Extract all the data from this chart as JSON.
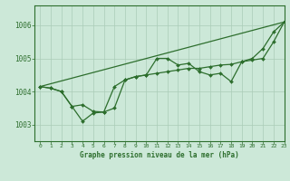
{
  "title": "Graphe pression niveau de la mer (hPa)",
  "background_color": "#cce8d8",
  "grid_color": "#aaccb8",
  "line_color": "#2d6e2d",
  "marker_color": "#2d6e2d",
  "xlim": [
    -0.5,
    23
  ],
  "ylim": [
    1002.5,
    1006.6
  ],
  "yticks": [
    1003,
    1004,
    1005,
    1006
  ],
  "xticks": [
    0,
    1,
    2,
    3,
    4,
    5,
    6,
    7,
    8,
    9,
    10,
    11,
    12,
    13,
    14,
    15,
    16,
    17,
    18,
    19,
    20,
    21,
    22,
    23
  ],
  "series1_x": [
    0,
    1,
    2,
    3,
    4,
    5,
    6,
    7,
    8,
    9,
    10,
    11,
    12,
    13,
    14,
    15,
    16,
    17,
    18,
    19,
    20,
    21,
    22,
    23
  ],
  "series1_y": [
    1004.15,
    1004.1,
    1004.0,
    1003.55,
    1003.1,
    1003.35,
    1003.38,
    1004.15,
    1004.35,
    1004.45,
    1004.5,
    1005.0,
    1005.0,
    1004.8,
    1004.85,
    1004.6,
    1004.5,
    1004.55,
    1004.3,
    1004.9,
    1005.0,
    1005.3,
    1005.8,
    1006.1
  ],
  "series2_x": [
    0,
    23
  ],
  "series2_y": [
    1004.15,
    1006.1
  ],
  "series3_x": [
    0,
    1,
    2,
    3,
    4,
    5,
    6,
    7,
    8,
    9,
    10,
    11,
    12,
    13,
    14,
    15,
    16,
    17,
    18,
    19,
    20,
    21,
    22,
    23
  ],
  "series3_y": [
    1004.15,
    1004.1,
    1004.0,
    1003.55,
    1003.6,
    1003.4,
    1003.38,
    1003.5,
    1004.35,
    1004.45,
    1004.5,
    1004.55,
    1004.6,
    1004.65,
    1004.7,
    1004.7,
    1004.75,
    1004.8,
    1004.82,
    1004.9,
    1004.95,
    1005.0,
    1005.5,
    1006.1
  ]
}
